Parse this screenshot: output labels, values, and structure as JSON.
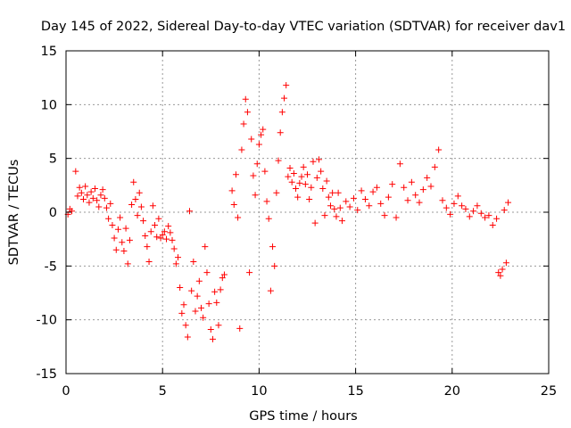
{
  "chart_data": {
    "type": "scatter",
    "title": "Day 145 of 2022, Sidereal Day-to-day VTEC variation (SDTVAR) for receiver dav1",
    "xlabel": "GPS time / hours",
    "ylabel": "SDTVAR / TECUs",
    "xlim": [
      0,
      25
    ],
    "ylim": [
      -15,
      15
    ],
    "xticks": [
      0,
      5,
      10,
      15,
      20,
      25
    ],
    "yticks": [
      -15,
      -10,
      -5,
      0,
      5,
      10,
      15
    ],
    "xtick_labels": [
      "0",
      "5",
      "10",
      "15",
      "20",
      "25"
    ],
    "ytick_labels": [
      "-15",
      "-10",
      "-5",
      "0",
      "5",
      "10",
      "15"
    ],
    "grid": true,
    "legend": "none",
    "marker": "+",
    "color": "#ff0000",
    "series": [
      {
        "name": "SDTVAR",
        "points": [
          [
            0.1,
            -0.2
          ],
          [
            0.2,
            0.3
          ],
          [
            0.3,
            0.1
          ],
          [
            0.5,
            3.8
          ],
          [
            0.6,
            1.5
          ],
          [
            0.7,
            2.3
          ],
          [
            0.8,
            1.8
          ],
          [
            0.9,
            1.2
          ],
          [
            1.0,
            2.4
          ],
          [
            1.1,
            1.6
          ],
          [
            1.2,
            0.9
          ],
          [
            1.3,
            1.9
          ],
          [
            1.4,
            1.3
          ],
          [
            1.5,
            2.2
          ],
          [
            1.6,
            1.1
          ],
          [
            1.7,
            0.5
          ],
          [
            1.8,
            1.6
          ],
          [
            1.9,
            2.1
          ],
          [
            2.0,
            1.3
          ],
          [
            2.1,
            0.4
          ],
          [
            2.2,
            -0.6
          ],
          [
            2.3,
            0.8
          ],
          [
            2.4,
            -1.2
          ],
          [
            2.5,
            -2.4
          ],
          [
            2.6,
            -3.5
          ],
          [
            2.7,
            -1.6
          ],
          [
            2.8,
            -0.5
          ],
          [
            2.9,
            -2.8
          ],
          [
            3.0,
            -3.6
          ],
          [
            3.1,
            -1.5
          ],
          [
            3.2,
            -4.8
          ],
          [
            3.3,
            -2.6
          ],
          [
            3.4,
            0.7
          ],
          [
            3.5,
            2.8
          ],
          [
            3.6,
            1.2
          ],
          [
            3.7,
            -0.3
          ],
          [
            3.8,
            1.8
          ],
          [
            3.9,
            0.5
          ],
          [
            4.0,
            -0.8
          ],
          [
            4.1,
            -2.2
          ],
          [
            4.2,
            -3.2
          ],
          [
            4.3,
            -4.6
          ],
          [
            4.4,
            -1.8
          ],
          [
            4.5,
            0.6
          ],
          [
            4.6,
            -1.2
          ],
          [
            4.7,
            -2.3
          ],
          [
            4.8,
            -0.6
          ],
          [
            4.9,
            -2.4
          ],
          [
            5.0,
            -2.1
          ],
          [
            5.1,
            -1.8
          ],
          [
            5.2,
            -2.5
          ],
          [
            5.3,
            -1.3
          ],
          [
            5.4,
            -1.9
          ],
          [
            5.5,
            -2.6
          ],
          [
            5.6,
            -3.4
          ],
          [
            5.7,
            -4.8
          ],
          [
            5.8,
            -4.2
          ],
          [
            5.9,
            -7.0
          ],
          [
            6.0,
            -9.4
          ],
          [
            6.1,
            -8.6
          ],
          [
            6.2,
            -10.5
          ],
          [
            6.3,
            -11.6
          ],
          [
            6.4,
            0.1
          ],
          [
            6.5,
            -7.3
          ],
          [
            6.6,
            -4.6
          ],
          [
            6.7,
            -9.2
          ],
          [
            6.8,
            -7.8
          ],
          [
            6.9,
            -6.4
          ],
          [
            7.0,
            -8.9
          ],
          [
            7.1,
            -9.8
          ],
          [
            7.2,
            -3.2
          ],
          [
            7.3,
            -5.6
          ],
          [
            7.4,
            -8.5
          ],
          [
            7.5,
            -10.9
          ],
          [
            7.6,
            -11.8
          ],
          [
            7.7,
            -7.4
          ],
          [
            7.8,
            -8.4
          ],
          [
            7.9,
            -10.5
          ],
          [
            8.0,
            -7.2
          ],
          [
            8.1,
            -6.1
          ],
          [
            8.2,
            -5.8
          ],
          [
            8.6,
            2.0
          ],
          [
            8.7,
            0.7
          ],
          [
            8.8,
            3.5
          ],
          [
            8.9,
            -0.5
          ],
          [
            9.0,
            -10.8
          ],
          [
            9.1,
            5.8
          ],
          [
            9.2,
            8.2
          ],
          [
            9.3,
            10.5
          ],
          [
            9.4,
            9.3
          ],
          [
            9.5,
            -5.6
          ],
          [
            9.6,
            6.8
          ],
          [
            9.7,
            3.4
          ],
          [
            9.8,
            1.6
          ],
          [
            9.9,
            4.5
          ],
          [
            10.0,
            6.3
          ],
          [
            10.1,
            7.2
          ],
          [
            10.2,
            7.7
          ],
          [
            10.3,
            3.8
          ],
          [
            10.4,
            1.0
          ],
          [
            10.5,
            -0.6
          ],
          [
            10.6,
            -7.3
          ],
          [
            10.7,
            -3.2
          ],
          [
            10.8,
            -5.0
          ],
          [
            10.9,
            1.8
          ],
          [
            11.0,
            4.8
          ],
          [
            11.1,
            7.4
          ],
          [
            11.2,
            9.3
          ],
          [
            11.3,
            10.6
          ],
          [
            11.4,
            11.8
          ],
          [
            11.5,
            3.3
          ],
          [
            11.6,
            4.1
          ],
          [
            11.7,
            2.8
          ],
          [
            11.8,
            3.6
          ],
          [
            11.9,
            2.2
          ],
          [
            12.0,
            1.4
          ],
          [
            12.1,
            2.7
          ],
          [
            12.2,
            3.3
          ],
          [
            12.3,
            4.2
          ],
          [
            12.4,
            2.6
          ],
          [
            12.5,
            3.5
          ],
          [
            12.6,
            1.2
          ],
          [
            12.7,
            2.3
          ],
          [
            12.8,
            4.7
          ],
          [
            12.9,
            -1.0
          ],
          [
            13.0,
            3.2
          ],
          [
            13.1,
            4.9
          ],
          [
            13.2,
            3.8
          ],
          [
            13.3,
            2.2
          ],
          [
            13.4,
            -0.3
          ],
          [
            13.5,
            2.9
          ],
          [
            13.6,
            1.4
          ],
          [
            13.7,
            0.6
          ],
          [
            13.8,
            1.8
          ],
          [
            13.9,
            0.3
          ],
          [
            14.0,
            -0.4
          ],
          [
            14.1,
            1.8
          ],
          [
            14.2,
            0.4
          ],
          [
            14.3,
            -0.8
          ],
          [
            14.5,
            1.0
          ],
          [
            14.7,
            0.5
          ],
          [
            14.9,
            1.3
          ],
          [
            15.1,
            0.2
          ],
          [
            15.3,
            2.0
          ],
          [
            15.5,
            1.2
          ],
          [
            15.7,
            0.6
          ],
          [
            15.9,
            1.9
          ],
          [
            16.1,
            2.3
          ],
          [
            16.3,
            0.8
          ],
          [
            16.5,
            -0.3
          ],
          [
            16.7,
            1.4
          ],
          [
            16.9,
            2.6
          ],
          [
            17.1,
            -0.5
          ],
          [
            17.3,
            4.5
          ],
          [
            17.5,
            2.3
          ],
          [
            17.7,
            1.1
          ],
          [
            17.9,
            2.8
          ],
          [
            18.1,
            1.6
          ],
          [
            18.3,
            0.9
          ],
          [
            18.5,
            2.1
          ],
          [
            18.7,
            3.2
          ],
          [
            18.9,
            2.4
          ],
          [
            19.1,
            4.2
          ],
          [
            19.3,
            5.8
          ],
          [
            19.5,
            1.1
          ],
          [
            19.7,
            0.4
          ],
          [
            19.9,
            -0.2
          ],
          [
            20.1,
            0.8
          ],
          [
            20.3,
            1.5
          ],
          [
            20.5,
            0.6
          ],
          [
            20.7,
            0.3
          ],
          [
            20.9,
            -0.4
          ],
          [
            21.1,
            0.1
          ],
          [
            21.3,
            0.6
          ],
          [
            21.5,
            -0.1
          ],
          [
            21.7,
            -0.5
          ],
          [
            21.9,
            -0.3
          ],
          [
            22.1,
            -1.2
          ],
          [
            22.3,
            -0.6
          ],
          [
            22.4,
            -5.6
          ],
          [
            22.5,
            -5.9
          ],
          [
            22.6,
            -5.3
          ],
          [
            22.7,
            0.2
          ],
          [
            22.8,
            -4.7
          ],
          [
            22.9,
            0.9
          ]
        ]
      }
    ]
  }
}
